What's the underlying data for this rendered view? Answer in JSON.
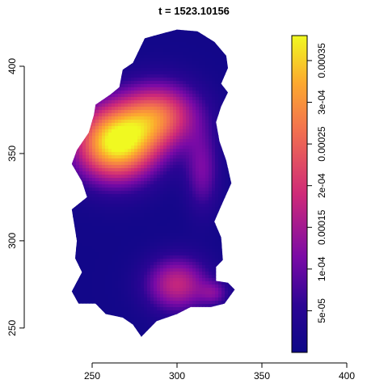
{
  "chart_data": {
    "type": "heatmap",
    "title": "t = 1523.10156",
    "xlabel": "",
    "ylabel": "",
    "xlim": [
      210,
      410
    ],
    "ylim": [
      230,
      425
    ],
    "x_ticks": [
      250,
      300,
      350,
      400
    ],
    "y_ticks": [
      250,
      300,
      350,
      400
    ],
    "grid": false,
    "region_outline": [
      [
        252,
        378
      ],
      [
        261,
        384
      ],
      [
        266,
        388
      ],
      [
        268,
        398
      ],
      [
        274,
        402
      ],
      [
        281,
        416
      ],
      [
        292,
        419
      ],
      [
        300,
        421
      ],
      [
        312,
        420
      ],
      [
        322,
        414
      ],
      [
        329,
        406
      ],
      [
        330,
        399
      ],
      [
        326,
        390
      ],
      [
        330,
        385
      ],
      [
        326,
        377
      ],
      [
        323,
        368
      ],
      [
        325,
        357
      ],
      [
        329,
        346
      ],
      [
        332,
        333
      ],
      [
        326,
        320
      ],
      [
        322,
        311
      ],
      [
        326,
        302
      ],
      [
        327,
        289
      ],
      [
        323,
        285
      ],
      [
        323,
        277
      ],
      [
        330,
        276
      ],
      [
        334,
        272
      ],
      [
        328,
        264
      ],
      [
        320,
        262
      ],
      [
        308,
        262
      ],
      [
        300,
        258
      ],
      [
        288,
        254
      ],
      [
        282,
        248
      ],
      [
        279,
        245
      ],
      [
        274,
        252
      ],
      [
        268,
        256
      ],
      [
        258,
        258
      ],
      [
        252,
        264
      ],
      [
        242,
        264
      ],
      [
        238,
        271
      ],
      [
        244,
        282
      ],
      [
        240,
        290
      ],
      [
        241,
        300
      ],
      [
        238,
        318
      ],
      [
        247,
        325
      ],
      [
        244,
        334
      ],
      [
        238,
        344
      ],
      [
        241,
        352
      ],
      [
        248,
        362
      ],
      [
        251,
        372
      ],
      [
        252,
        378
      ]
    ],
    "hotspots": [
      {
        "x": 264,
        "y": 356,
        "sx": 17,
        "sy": 15,
        "value": 0.00037
      },
      {
        "x": 290,
        "y": 372,
        "sx": 16,
        "sy": 13,
        "value": 0.00022
      },
      {
        "x": 300,
        "y": 275,
        "sx": 13,
        "sy": 11,
        "value": 0.00017
      },
      {
        "x": 315,
        "y": 340,
        "sx": 7,
        "sy": 16,
        "value": 0.0001
      },
      {
        "x": 322,
        "y": 270,
        "sx": 6,
        "sy": 5,
        "value": 8e-05
      }
    ],
    "background_value": 1e-05,
    "colorbar": {
      "range": [
        0,
        0.00038
      ],
      "ticks": [
        5e-05,
        0.0001,
        0.00015,
        0.0002,
        0.00025,
        0.0003,
        0.00035
      ],
      "tick_labels": [
        "5e-05",
        "1e-04",
        "0.00015",
        "2e-04",
        "0.00025",
        "3e-04",
        "0.00035"
      ],
      "colors": [
        "#0d0887",
        "#3a049a",
        "#7a09b0",
        "#b12a90",
        "#e16462",
        "#fca636",
        "#f0f921"
      ]
    }
  }
}
